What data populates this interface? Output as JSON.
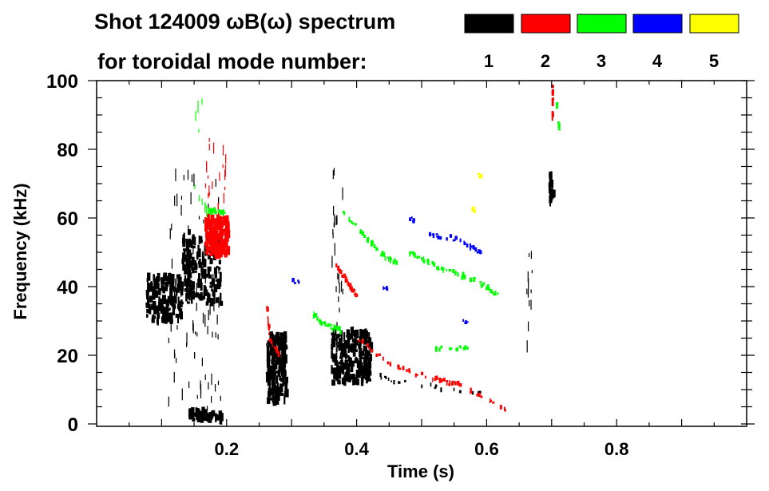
{
  "chart_data": {
    "type": "heatmap",
    "title": "Shot 124009 ωB(ω) spectrum",
    "subtitle": "for toroidal mode number:",
    "xlabel": "Time (s)",
    "ylabel": "Frequency (kHz)",
    "xlim": [
      0,
      1.0
    ],
    "ylim": [
      0,
      100
    ],
    "xticks": [
      0.2,
      0.4,
      0.6,
      0.8
    ],
    "xtick_labels": [
      "0.2",
      "0.4",
      "0.6",
      "0.8"
    ],
    "yticks": [
      0,
      20,
      40,
      60,
      80,
      100
    ],
    "ytick_labels": [
      "0",
      "20",
      "40",
      "60",
      "80",
      "100"
    ],
    "grid": false,
    "legend": {
      "placement": "top-right",
      "entries": [
        {
          "label": "1",
          "color": "#000000"
        },
        {
          "label": "2",
          "color": "#ff0000"
        },
        {
          "label": "3",
          "color": "#00ff00"
        },
        {
          "label": "4",
          "color": "#0000ff"
        },
        {
          "label": "5",
          "color": "#ffff00"
        }
      ]
    },
    "features": [
      {
        "mode": 1,
        "kind": "blob",
        "t": [
          0.075,
          0.13
        ],
        "f": [
          30,
          43
        ],
        "density": 160
      },
      {
        "mode": 1,
        "kind": "blob",
        "t": [
          0.13,
          0.19
        ],
        "f": [
          35,
          56
        ],
        "density": 170
      },
      {
        "mode": 1,
        "kind": "streaks",
        "t": [
          0.11,
          0.19
        ],
        "f": [
          2,
          75
        ],
        "density": 90
      },
      {
        "mode": 1,
        "kind": "blob",
        "t": [
          0.14,
          0.19
        ],
        "f": [
          1,
          4
        ],
        "density": 50
      },
      {
        "mode": 1,
        "kind": "blob",
        "t": [
          0.26,
          0.29
        ],
        "f": [
          6,
          26
        ],
        "density": 190
      },
      {
        "mode": 1,
        "kind": "blob",
        "t": [
          0.36,
          0.42
        ],
        "f": [
          12,
          27
        ],
        "density": 220
      },
      {
        "mode": 1,
        "kind": "streaks",
        "t": [
          0.36,
          0.38
        ],
        "f": [
          20,
          77
        ],
        "density": 25
      },
      {
        "mode": 1,
        "kind": "blob",
        "t": [
          0.695,
          0.7
        ],
        "f": [
          64,
          73
        ],
        "density": 15
      },
      {
        "mode": 1,
        "kind": "streaks",
        "t": [
          0.66,
          0.67
        ],
        "f": [
          20,
          50
        ],
        "density": 12
      },
      {
        "mode": 1,
        "kind": "track",
        "points": [
          [
            0.43,
            14
          ],
          [
            0.47,
            12
          ],
          [
            0.59,
            9
          ]
        ],
        "density": 20
      },
      {
        "mode": 2,
        "kind": "blob",
        "t": [
          0.165,
          0.2
        ],
        "f": [
          49,
          60
        ],
        "density": 160
      },
      {
        "mode": 2,
        "kind": "streaks",
        "t": [
          0.165,
          0.2
        ],
        "f": [
          60,
          83
        ],
        "density": 25
      },
      {
        "mode": 2,
        "kind": "track",
        "points": [
          [
            0.26,
            36
          ],
          [
            0.265,
            25
          ],
          [
            0.28,
            20
          ]
        ],
        "density": 25
      },
      {
        "mode": 2,
        "kind": "track",
        "points": [
          [
            0.365,
            47
          ],
          [
            0.385,
            41
          ],
          [
            0.4,
            37
          ]
        ],
        "density": 40
      },
      {
        "mode": 2,
        "kind": "track",
        "points": [
          [
            0.4,
            25
          ],
          [
            0.45,
            17
          ],
          [
            0.52,
            13
          ],
          [
            0.56,
            11
          ],
          [
            0.63,
            4
          ]
        ],
        "density": 55
      },
      {
        "mode": 2,
        "kind": "track",
        "points": [
          [
            0.7,
            98
          ],
          [
            0.7,
            88
          ]
        ],
        "density": 12
      },
      {
        "mode": 3,
        "kind": "track",
        "points": [
          [
            0.17,
            62
          ],
          [
            0.195,
            61.5
          ]
        ],
        "density": 25
      },
      {
        "mode": 3,
        "kind": "track",
        "points": [
          [
            0.33,
            32
          ],
          [
            0.35,
            29
          ],
          [
            0.375,
            27
          ]
        ],
        "density": 30
      },
      {
        "mode": 3,
        "kind": "track",
        "points": [
          [
            0.375,
            62
          ],
          [
            0.41,
            55
          ],
          [
            0.44,
            49
          ],
          [
            0.46,
            47
          ]
        ],
        "density": 40
      },
      {
        "mode": 3,
        "kind": "track",
        "points": [
          [
            0.48,
            50
          ],
          [
            0.53,
            45
          ],
          [
            0.58,
            42
          ],
          [
            0.62,
            37
          ]
        ],
        "density": 60
      },
      {
        "mode": 3,
        "kind": "track",
        "points": [
          [
            0.52,
            22
          ],
          [
            0.57,
            22
          ]
        ],
        "density": 15
      },
      {
        "mode": 3,
        "kind": "track",
        "points": [
          [
            0.705,
            96
          ],
          [
            0.71,
            86
          ]
        ],
        "density": 10
      },
      {
        "mode": 3,
        "kind": "streaks",
        "t": [
          0.15,
          0.17
        ],
        "f": [
          60,
          94
        ],
        "density": 10
      },
      {
        "mode": 4,
        "kind": "track",
        "points": [
          [
            0.51,
            55
          ],
          [
            0.55,
            54
          ],
          [
            0.59,
            50
          ]
        ],
        "density": 35
      },
      {
        "mode": 4,
        "kind": "track",
        "points": [
          [
            0.44,
            40
          ],
          [
            0.45,
            39
          ]
        ],
        "density": 5
      },
      {
        "mode": 4,
        "kind": "track",
        "points": [
          [
            0.3,
            42
          ],
          [
            0.31,
            41
          ]
        ],
        "density": 5
      },
      {
        "mode": 4,
        "kind": "track",
        "points": [
          [
            0.48,
            60
          ],
          [
            0.49,
            59
          ]
        ],
        "density": 5
      },
      {
        "mode": 4,
        "kind": "track",
        "points": [
          [
            0.56,
            30
          ],
          [
            0.57,
            30
          ]
        ],
        "density": 4
      },
      {
        "mode": 5,
        "kind": "track",
        "points": [
          [
            0.585,
            73
          ],
          [
            0.59,
            72
          ]
        ],
        "density": 5
      },
      {
        "mode": 5,
        "kind": "track",
        "points": [
          [
            0.575,
            63
          ],
          [
            0.58,
            62
          ]
        ],
        "density": 5
      }
    ]
  }
}
